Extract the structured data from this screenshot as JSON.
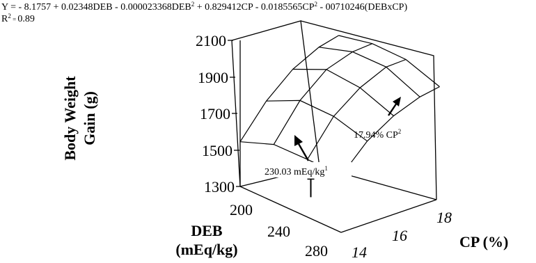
{
  "equation": "Y = - 8.1757 + 0.02348DEB - 0.000023368DEB",
  "equation_parts": {
    "p1": "Y = - 8.1757 + 0.02348DEB - 0.000023368DEB",
    "sup1": "2",
    "p2": " + 0.829412CP - 0.0185565CP",
    "sup2": "2",
    "p3": " - 00710246(DEBxCP)"
  },
  "r_squared": {
    "label": "R",
    "sup": "2",
    "sep": " = ",
    "value": "0.89"
  },
  "annotations": {
    "deb_opt": {
      "text": "230.03 mEq/kg",
      "sup": "1"
    },
    "cp_opt": {
      "text": "17.94% CP",
      "sup": "2"
    }
  },
  "chart_data": {
    "type": "surface",
    "zlabel_line1": "Body Weight",
    "zlabel_line2": "Gain (g)",
    "xlabel_line1": "DEB",
    "xlabel_line2": "(mEq/kg)",
    "ylabel": "CP (%)",
    "z_ticks": [
      "2100",
      "1900",
      "1700",
      "1500",
      "1300"
    ],
    "z_tick_values": [
      2100,
      1900,
      1700,
      1500,
      1300
    ],
    "x_ticks": [
      "200",
      "240",
      "280"
    ],
    "x_tick_values": [
      200,
      240,
      280
    ],
    "y_ticks": [
      "18",
      "16",
      "14"
    ],
    "y_tick_values": [
      18,
      16,
      14
    ],
    "zlim": [
      1300,
      2100
    ],
    "xlim": [
      160,
      280
    ],
    "ylim": [
      14,
      18
    ],
    "grid_x": [
      160,
      200,
      240,
      280
    ],
    "grid_y": [
      14,
      15.33,
      16.67,
      18,
      19
    ],
    "surface": [
      [
        1545,
        1708,
        1822,
        1883,
        1902
      ],
      [
        1614,
        1795,
        1904,
        1941,
        1941
      ],
      [
        1616,
        1792,
        1888,
        1942,
        1938
      ],
      [
        1610,
        1740,
        1818,
        1862,
        1873
      ]
    ]
  }
}
